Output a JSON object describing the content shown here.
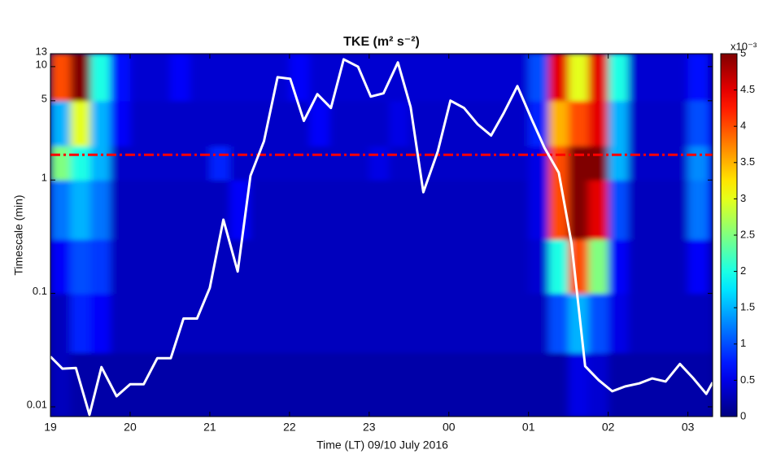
{
  "chart_data": {
    "type": "heatmap",
    "title": "TKE (m² s⁻²)",
    "x_label": "Time (LT) 09/10 July 2016",
    "y_label": "Timescale (min)",
    "y_scale": "log",
    "xlim": [
      19,
      27.31
    ],
    "ylim": [
      0.0082,
      13
    ],
    "xticks": [
      19,
      20,
      21,
      22,
      23,
      {
        "value": 24,
        "label": "00"
      },
      {
        "value": 25,
        "label": "01"
      },
      {
        "value": 26,
        "label": "02"
      },
      {
        "value": 27,
        "label": "03"
      }
    ],
    "yticks": [
      0.01,
      0.1,
      1,
      5,
      10,
      13
    ],
    "colormap": "jet",
    "clim": [
      0,
      5
    ],
    "cticks": [
      0,
      0.5,
      1,
      1.5,
      2,
      2.5,
      3,
      3.5,
      4,
      4.5,
      5
    ],
    "colorbar_label": "x10⁻³",
    "xbins": [
      19,
      19.25,
      19.5,
      19.75,
      20,
      20.25,
      20.5,
      20.75,
      21,
      21.25,
      21.5,
      21.75,
      22,
      22.25,
      22.5,
      22.75,
      23,
      23.25,
      23.5,
      23.75,
      24,
      24.25,
      24.5,
      24.75,
      25,
      25.25,
      25.5,
      25.75,
      26,
      26.25,
      26.5,
      26.75,
      27,
      27.25,
      27.31
    ],
    "ybins": [
      0.0082,
      0.03,
      0.1,
      0.3,
      1,
      2,
      5,
      13
    ],
    "z": [
      [
        0.3,
        0.2,
        0.2,
        0.2,
        0.2,
        0.2,
        0.2,
        0.2,
        0.2,
        0.2,
        0.2,
        0.2,
        0.2,
        0.2,
        0.2,
        0.2,
        0.2,
        0.2,
        0.2,
        0.2,
        0.2,
        0.2,
        0.2,
        0.2,
        0.2,
        0.2,
        0.5,
        0.4,
        0.2,
        0.2,
        0.2,
        0.2,
        0.2,
        0.2
      ],
      [
        0.3,
        0.8,
        0.6,
        0.3,
        0.3,
        0.3,
        0.3,
        0.3,
        0.3,
        0.3,
        0.3,
        0.3,
        0.3,
        0.3,
        0.3,
        0.3,
        0.3,
        0.3,
        0.3,
        0.3,
        0.3,
        0.3,
        0.3,
        0.3,
        0.3,
        1,
        1.5,
        1,
        0.5,
        0.3,
        0.3,
        0.3,
        0.3,
        0.3
      ],
      [
        0.6,
        1,
        0.9,
        0.3,
        0.3,
        0.3,
        0.3,
        0.3,
        0.3,
        0.3,
        0.3,
        0.3,
        0.3,
        0.3,
        0.3,
        0.3,
        0.3,
        0.3,
        0.3,
        0.3,
        0.3,
        0.3,
        0.3,
        0.3,
        0.4,
        2,
        4,
        2.5,
        0.6,
        0.3,
        0.3,
        0.3,
        0.6,
        0.3
      ],
      [
        1.2,
        1.5,
        1.2,
        0.3,
        0.3,
        0.3,
        0.3,
        0.3,
        0.3,
        0.6,
        0.3,
        0.3,
        0.3,
        0.3,
        0.3,
        0.3,
        0.3,
        0.3,
        0.3,
        0.3,
        0.3,
        0.3,
        0.3,
        0.3,
        0.5,
        4,
        5,
        4.5,
        1,
        0.3,
        0.3,
        0.3,
        1.2,
        0.8
      ],
      [
        2.5,
        2,
        1.5,
        0.35,
        0.35,
        0.35,
        0.35,
        0.35,
        0.8,
        0.35,
        0.35,
        0.35,
        0.35,
        0.35,
        0.35,
        0.35,
        0.5,
        0.35,
        0.35,
        0.35,
        0.35,
        0.35,
        0.35,
        0.35,
        0.5,
        4,
        5,
        5,
        1.5,
        0.35,
        0.35,
        0.35,
        1.3,
        0.9
      ],
      [
        1.5,
        3,
        1.5,
        0.6,
        0.35,
        0.35,
        0.35,
        0.35,
        0.35,
        0.35,
        0.35,
        0.35,
        0.35,
        0.6,
        0.35,
        0.35,
        0.35,
        0.5,
        0.35,
        0.35,
        0.35,
        0.35,
        0.35,
        0.35,
        0.8,
        3.5,
        4,
        4.5,
        1.5,
        0.35,
        0.35,
        0.35,
        1,
        0.7
      ],
      [
        4,
        5,
        2,
        0.7,
        0.4,
        0.4,
        0.6,
        0.4,
        0.4,
        0.4,
        0.4,
        0.4,
        0.6,
        0.4,
        0.4,
        0.4,
        0.4,
        0.4,
        0.4,
        0.4,
        0.4,
        0.4,
        0.4,
        0.4,
        1,
        4.5,
        3,
        4.5,
        2,
        0.4,
        0.4,
        0.4,
        0.7,
        0.4
      ]
    ],
    "series": [
      {
        "color": "#ffffff",
        "x": [
          19.0,
          19.15,
          19.32,
          19.49,
          19.64,
          19.83,
          20.0,
          20.17,
          20.34,
          20.51,
          20.67,
          20.84,
          21.0,
          21.17,
          21.35,
          21.51,
          21.68,
          21.85,
          22.01,
          22.18,
          22.35,
          22.52,
          22.68,
          22.86,
          23.02,
          23.18,
          23.36,
          23.52,
          23.68,
          23.86,
          24.02,
          24.19,
          24.36,
          24.53,
          24.69,
          24.86,
          25.04,
          25.2,
          25.38,
          25.54,
          25.71,
          25.88,
          26.05,
          26.21,
          26.39,
          26.55,
          26.72,
          26.9,
          27.06,
          27.23,
          27.31
        ],
        "values": [
          0.0277,
          0.0217,
          0.022,
          0.0085,
          0.0224,
          0.0124,
          0.0158,
          0.0158,
          0.0268,
          0.0268,
          0.06,
          0.06,
          0.112,
          0.447,
          0.156,
          1.09,
          2.2,
          8.07,
          7.8,
          3.32,
          5.72,
          4.32,
          11.6,
          10.0,
          5.44,
          5.81,
          10.9,
          4.39,
          0.78,
          1.78,
          5.01,
          4.32,
          3.11,
          2.47,
          3.92,
          6.74,
          3.43,
          1.93,
          1.16,
          0.277,
          0.0228,
          0.0172,
          0.0137,
          0.0151,
          0.0161,
          0.0178,
          0.0167,
          0.0239,
          0.0181,
          0.013,
          0.0164
        ]
      }
    ],
    "hlines": [
      {
        "value": 1.67,
        "color": "#ff0000"
      }
    ]
  }
}
